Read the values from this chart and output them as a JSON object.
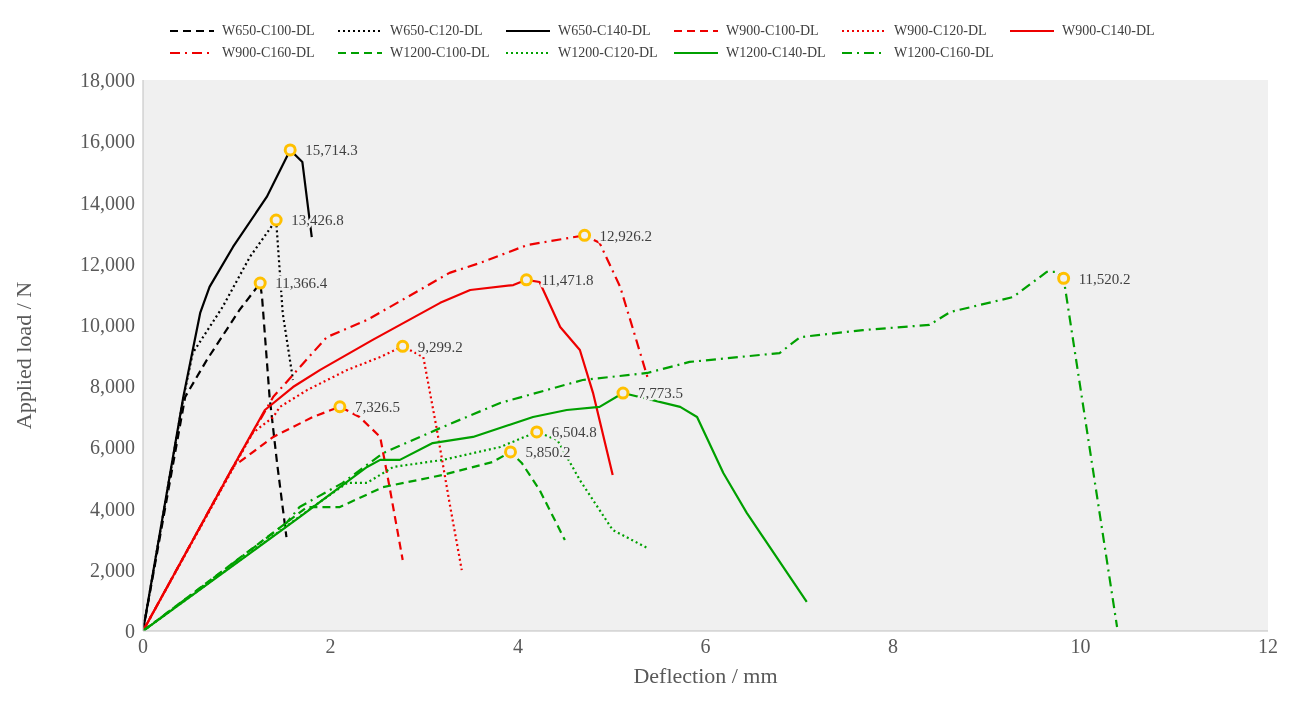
{
  "chart_data": {
    "type": "line",
    "xlabel": "Deflection / mm",
    "ylabel": "Applied load / N",
    "xlim": [
      0,
      12
    ],
    "xticks": [
      0,
      2,
      4,
      6,
      8,
      10,
      12
    ],
    "ylim": [
      0,
      18000
    ],
    "yticks": [
      {
        "value": 0,
        "label": "0"
      },
      {
        "value": 2000,
        "label": "2,000"
      },
      {
        "value": 4000,
        "label": "4,000"
      },
      {
        "value": 6000,
        "label": "6,000"
      },
      {
        "value": 8000,
        "label": "8,000"
      },
      {
        "value": 10000,
        "label": "10,000"
      },
      {
        "value": 12000,
        "label": "12,000"
      },
      {
        "value": 14000,
        "label": "14,000"
      },
      {
        "value": 16000,
        "label": "16,000"
      },
      {
        "value": 18000,
        "label": "18,000"
      }
    ],
    "grid": false,
    "legend": "top",
    "marker": "none",
    "series": [
      {
        "name": "W650-C100-DL",
        "color": "#000000",
        "line_style": "dashed",
        "x": [
          0,
          0.45,
          0.68,
          1.03,
          1.25,
          1.27,
          1.35,
          1.43,
          1.53
        ],
        "values": [
          0,
          7650,
          8850,
          10490,
          11366.4,
          10900,
          7650,
          5490,
          3070
        ]
      },
      {
        "name": "W650-C120-DL",
        "color": "#000000",
        "line_style": "dotted",
        "x": [
          0,
          0.43,
          0.53,
          0.85,
          1.14,
          1.42,
          1.49,
          1.6
        ],
        "values": [
          0,
          7600,
          9080,
          10590,
          12220,
          13426.8,
          10390,
          8200
        ]
      },
      {
        "name": "W650-C140-DL",
        "color": "#000000",
        "line_style": "solid",
        "x": [
          0,
          0.43,
          0.61,
          0.71,
          0.96,
          1.32,
          1.57,
          1.7,
          1.8
        ],
        "values": [
          0,
          7645,
          10390,
          11240,
          12545,
          14180,
          15714.3,
          15320,
          12870
        ]
      },
      {
        "name": "W900-C100-DL",
        "color": "#ee0000",
        "line_style": "dashed",
        "x": [
          0,
          0.96,
          1.39,
          1.81,
          2.1,
          2.31,
          2.53,
          2.63,
          2.77
        ],
        "values": [
          0,
          5360,
          6340,
          6990,
          7326.5,
          6990,
          6340,
          4700,
          2320
        ]
      },
      {
        "name": "W900-C120-DL",
        "color": "#ee0000",
        "line_style": "dotted",
        "x": [
          0,
          1.17,
          1.39,
          1.46,
          1.75,
          2.18,
          2.53,
          2.77,
          2.99,
          3.13,
          3.27,
          3.4
        ],
        "values": [
          0,
          6470,
          6990,
          7320,
          7870,
          8530,
          8950,
          9299.2,
          8950,
          6660,
          4180,
          1990
        ]
      },
      {
        "name": "W900-C140-DL",
        "color": "#ee0000",
        "line_style": "solid",
        "x": [
          0,
          0.96,
          1.3,
          1.6,
          1.89,
          2.45,
          3.17,
          3.49,
          3.95,
          4.09,
          4.23,
          4.45,
          4.66,
          4.8,
          5.01
        ],
        "values": [
          0,
          5360,
          7220,
          7970,
          8530,
          9510,
          10720,
          11140,
          11300,
          11471.8,
          11400,
          9930,
          9180,
          7780,
          5100
        ]
      },
      {
        "name": "W900-C160-DL",
        "color": "#ee0000",
        "line_style": "dashdot",
        "x": [
          0,
          0.96,
          1.39,
          1.96,
          2.39,
          2.82,
          3.27,
          3.59,
          4.1,
          4.71,
          4.87,
          5.09,
          5.23,
          5.39
        ],
        "values": [
          0,
          5360,
          7650,
          9600,
          10160,
          10910,
          11700,
          12020,
          12610,
          12926.2,
          12680,
          11240,
          9830,
          8200
        ]
      },
      {
        "name": "W1200-C100-DL",
        "color": "#00a000",
        "line_style": "dashed",
        "x": [
          0,
          1.75,
          2.1,
          2.56,
          3.2,
          3.73,
          3.92,
          4.04,
          4.23,
          4.5
        ],
        "values": [
          0,
          4050,
          4050,
          4700,
          5100,
          5520,
          5850.2,
          5490,
          4610,
          2970
        ]
      },
      {
        "name": "W1200-C120-DL",
        "color": "#00a000",
        "line_style": "dotted",
        "x": [
          0,
          1.81,
          2.18,
          2.39,
          2.67,
          3.2,
          3.81,
          4.2,
          4.42,
          4.66,
          5.01,
          5.38
        ],
        "values": [
          0,
          4050,
          4840,
          4840,
          5360,
          5590,
          6010,
          6504.8,
          6240,
          4930,
          3300,
          2710
        ]
      },
      {
        "name": "W1200-C140-DL",
        "color": "#00a000",
        "line_style": "solid",
        "x": [
          0,
          1.67,
          2.39,
          2.53,
          2.74,
          3.09,
          3.52,
          4.16,
          4.52,
          4.87,
          5.12,
          5.73,
          5.91,
          6.19,
          6.44,
          7.08
        ],
        "values": [
          0,
          3720,
          5360,
          5590,
          5590,
          6140,
          6340,
          6990,
          7220,
          7320,
          7773.5,
          7320,
          6990,
          5160,
          3860,
          950
        ]
      },
      {
        "name": "W1200-C160-DL",
        "color": "#00a000",
        "line_style": "dashdot",
        "x": [
          0,
          1.53,
          1.67,
          2.13,
          2.56,
          3.17,
          3.81,
          4.69,
          5.38,
          5.83,
          6.79,
          7.01,
          7.68,
          8.39,
          8.61,
          9.28,
          9.64,
          9.75,
          9.82,
          10.39
        ],
        "values": [
          0,
          3530,
          4050,
          4840,
          5810,
          6630,
          7450,
          8200,
          8430,
          8790,
          9080,
          9600,
          9830,
          10000,
          10420,
          10910,
          11730,
          11730,
          11520.2,
          130
        ]
      }
    ],
    "annotations": [
      {
        "text": "15,714.3",
        "x": 1.57,
        "y": 15714.3
      },
      {
        "text": "13,426.8",
        "x": 1.42,
        "y": 13426.8
      },
      {
        "text": "11,366.4",
        "x": 1.25,
        "y": 11366.4
      },
      {
        "text": "12,926.2",
        "x": 4.71,
        "y": 12926.2
      },
      {
        "text": "11,471.8",
        "x": 4.09,
        "y": 11471.8
      },
      {
        "text": "9,299.2",
        "x": 2.77,
        "y": 9299.2
      },
      {
        "text": "7,326.5",
        "x": 2.1,
        "y": 7326.5
      },
      {
        "text": "11,520.2",
        "x": 9.82,
        "y": 11520.2
      },
      {
        "text": "7,773.5",
        "x": 5.12,
        "y": 7773.5
      },
      {
        "text": "6,504.8",
        "x": 4.2,
        "y": 6504.8
      },
      {
        "text": "5,850.2",
        "x": 3.92,
        "y": 5850.2
      }
    ]
  }
}
